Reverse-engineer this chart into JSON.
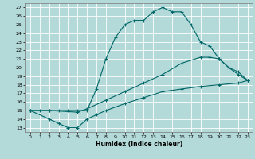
{
  "title": "",
  "xlabel": "Humidex (Indice chaleur)",
  "bg_color": "#b3d9d9",
  "grid_color": "#ffffff",
  "line_color": "#006666",
  "xlim": [
    -0.5,
    23.5
  ],
  "ylim": [
    12.5,
    27.5
  ],
  "xticks": [
    0,
    1,
    2,
    3,
    4,
    5,
    6,
    7,
    8,
    9,
    10,
    11,
    12,
    13,
    14,
    15,
    16,
    17,
    18,
    19,
    20,
    21,
    22,
    23
  ],
  "yticks": [
    13,
    14,
    15,
    16,
    17,
    18,
    19,
    20,
    21,
    22,
    23,
    24,
    25,
    26,
    27
  ],
  "curve1_x": [
    0,
    1,
    2,
    3,
    4,
    5,
    6,
    7,
    8,
    9,
    10,
    11,
    12,
    13,
    14,
    15,
    16,
    17,
    18,
    19,
    20,
    21,
    22,
    23
  ],
  "curve1_y": [
    15,
    15,
    15,
    15,
    15,
    15,
    15,
    17.5,
    21,
    23.5,
    25,
    25.5,
    25.5,
    26.5,
    27,
    26.5,
    26.5,
    25,
    23,
    22.5,
    21,
    20,
    19.5,
    18.5
  ],
  "curve2_x": [
    0,
    2,
    5,
    6,
    8,
    10,
    12,
    14,
    16,
    18,
    19,
    20,
    21,
    22,
    23
  ],
  "curve2_y": [
    15,
    15,
    14.8,
    15.2,
    16.2,
    17.2,
    18.2,
    19.2,
    20.5,
    21.2,
    21.2,
    21.0,
    20.0,
    19.2,
    18.5
  ],
  "curve3_x": [
    0,
    2,
    3,
    4,
    5,
    6,
    7,
    8,
    10,
    12,
    14,
    16,
    18,
    20,
    22,
    23
  ],
  "curve3_y": [
    15,
    14,
    13.5,
    13,
    13,
    14,
    14.5,
    15,
    15.8,
    16.5,
    17.2,
    17.5,
    17.8,
    18,
    18.2,
    18.5
  ]
}
